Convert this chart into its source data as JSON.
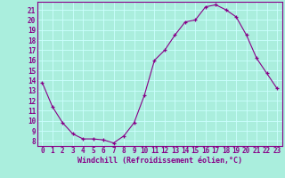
{
  "hours": [
    0,
    1,
    2,
    3,
    4,
    5,
    6,
    7,
    8,
    9,
    10,
    11,
    12,
    13,
    14,
    15,
    16,
    17,
    18,
    19,
    20,
    21,
    22,
    23
  ],
  "values": [
    13.8,
    11.4,
    9.8,
    8.7,
    8.2,
    8.2,
    8.1,
    7.8,
    8.5,
    9.8,
    12.5,
    16.0,
    17.0,
    18.5,
    19.8,
    20.0,
    21.3,
    21.5,
    21.0,
    20.3,
    18.5,
    16.2,
    14.7,
    13.2
  ],
  "line_color": "#880088",
  "marker": "+",
  "marker_color": "#880088",
  "bg_color": "#aaeedd",
  "grid_color": "#ccffff",
  "ylabel_ticks": [
    8,
    9,
    10,
    11,
    12,
    13,
    14,
    15,
    16,
    17,
    18,
    19,
    20,
    21
  ],
  "ylim": [
    7.5,
    21.8
  ],
  "xlim": [
    -0.5,
    23.5
  ],
  "xlabel": "Windchill (Refroidissement éolien,°C)",
  "tick_color": "#880088",
  "label_color": "#880088",
  "spine_color": "#880088",
  "tick_fontsize": 5.5,
  "xlabel_fontsize": 6.0
}
